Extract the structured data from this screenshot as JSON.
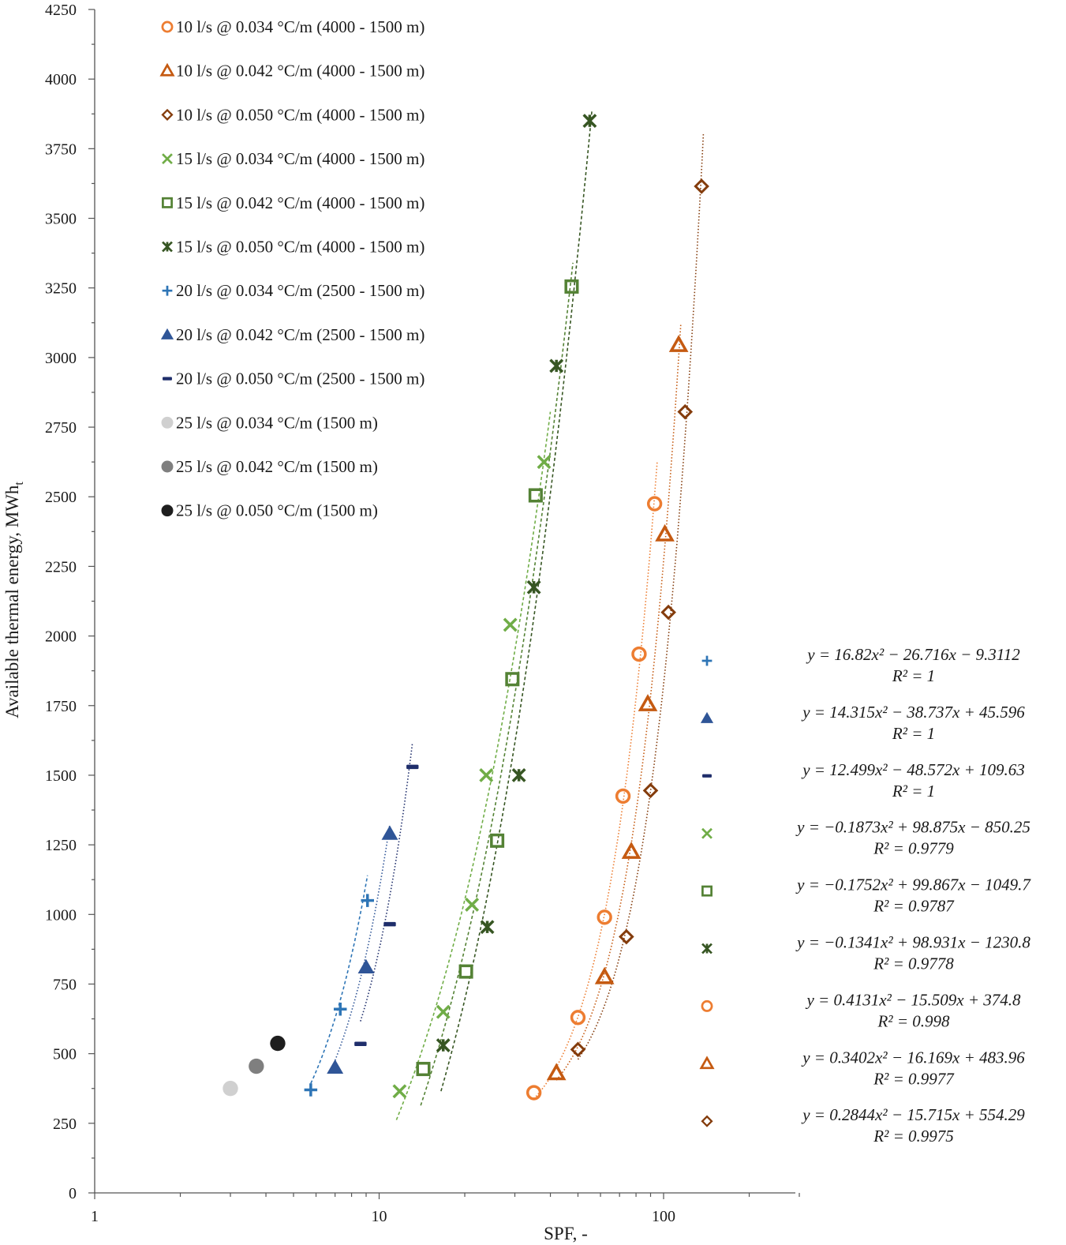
{
  "chart_data": {
    "type": "scatter",
    "title": "",
    "xlabel": "SPF, -",
    "ylabel": "Available thermal energy, MWh",
    "ylabel_subscript": "t",
    "x_scale": "log",
    "xlim": [
      1,
      300
    ],
    "ylim": [
      0,
      4250
    ],
    "x_ticks": [
      1,
      10,
      100
    ],
    "x_tick_labels": [
      "1",
      "10",
      "100"
    ],
    "y_ticks": [
      0,
      250,
      500,
      750,
      1000,
      1250,
      1500,
      1750,
      2000,
      2250,
      2500,
      2750,
      3000,
      3250,
      3500,
      3750,
      4000,
      4250
    ],
    "y_tick_labels": [
      "0",
      "250",
      "500",
      "750",
      "1000",
      "1250",
      "1500",
      "1750",
      "2000",
      "2250",
      "2500",
      "2750",
      "3000",
      "3250",
      "3500",
      "3750",
      "4000",
      "4250"
    ],
    "legend_position": "top-left",
    "series": [
      {
        "name": "10 l/s @ 0.034 °C/m (4000 - 1500 m)",
        "marker": "circle-open",
        "color": "#ED7D31",
        "x": [
          35,
          50,
          62,
          72,
          82,
          93
        ],
        "y": [
          360,
          630,
          990,
          1425,
          1935,
          2475
        ],
        "trend": {
          "style": "dotted",
          "x_range": [
            35,
            95
          ],
          "equation": "y = 0.4131x² − 15.509x + 374.8",
          "r2": "R² = 0.998",
          "coef": [
            0.4131,
            -15.509,
            374.8
          ]
        }
      },
      {
        "name": "10 l/s @ 0.042 °C/m (4000 - 1500 m)",
        "marker": "triangle-open",
        "color": "#C55A11",
        "x": [
          42,
          62,
          77,
          88,
          101,
          113
        ],
        "y": [
          430,
          775,
          1225,
          1755,
          2365,
          3045
        ],
        "trend": {
          "style": "dotted",
          "x_range": [
            42,
            115
          ],
          "equation": "y = 0.3402x² − 16.169x + 483.96",
          "r2": "R² = 0.9977",
          "coef": [
            0.3402,
            -16.169,
            483.96
          ]
        }
      },
      {
        "name": "10 l/s @ 0.050 °C/m (4000 - 1500 m)",
        "marker": "diamond-open",
        "color": "#843C0C",
        "x": [
          50,
          74,
          90,
          104,
          119,
          136
        ],
        "y": [
          515,
          920,
          1445,
          2085,
          2805,
          3615
        ],
        "trend": {
          "style": "dotted",
          "x_range": [
            50,
            138
          ],
          "equation": "y = 0.2844x² − 15.715x + 554.29",
          "r2": "R² = 0.9975",
          "coef": [
            0.2844,
            -15.715,
            554.29
          ]
        }
      },
      {
        "name": "15 l/s @ 0.034 °C/m (4000 - 1500 m)",
        "marker": "x",
        "color": "#70AD47",
        "x": [
          11.8,
          16.8,
          21.2,
          23.8,
          28.9,
          38
        ],
        "y": [
          365,
          650,
          1035,
          1500,
          2040,
          2625
        ],
        "trend": {
          "style": "dashed",
          "x_range": [
            11.5,
            40
          ],
          "equation": "y = −0.1873x² + 98.875x − 850.25",
          "r2": "R² = 0.9779",
          "coef": [
            -0.1873,
            98.875,
            -850.25
          ]
        }
      },
      {
        "name": "15 l/s @ 0.042 °C/m (4000 - 1500 m)",
        "marker": "square-open",
        "color": "#548235",
        "x": [
          14.3,
          20.2,
          26,
          29.4,
          35.5,
          47.5
        ],
        "y": [
          445,
          795,
          1265,
          1845,
          2505,
          3255
        ],
        "trend": {
          "style": "dashed",
          "x_range": [
            14,
            48
          ],
          "equation": "y = −0.1752x² + 99.867x − 1049.7",
          "r2": "R² = 0.9787",
          "coef": [
            -0.1752,
            99.867,
            -1049.7
          ]
        }
      },
      {
        "name": "15 l/s @ 0.050 °C/m (4000 - 1500 m)",
        "marker": "star-x",
        "color": "#375623",
        "x": [
          16.8,
          24,
          31,
          35,
          42,
          55
        ],
        "y": [
          530,
          955,
          1500,
          2175,
          2970,
          3850
        ],
        "trend": {
          "style": "dashed",
          "x_range": [
            16.5,
            56
          ],
          "equation": "y = −0.1341x² + 98.931x − 1230.8",
          "r2": "R² = 0.9778",
          "coef": [
            -0.1341,
            98.931,
            -1230.8
          ]
        }
      },
      {
        "name": "20 l/s @ 0.034 °C/m (2500 - 1500 m)",
        "marker": "plus",
        "color": "#2E75B6",
        "x": [
          5.75,
          7.3,
          9.1
        ],
        "y": [
          370,
          660,
          1050
        ],
        "trend": {
          "style": "dashed",
          "x_range": [
            5.75,
            9.1
          ],
          "equation": "y = 16.82x² − 26.716x − 9.3112",
          "r2": "R² = 1",
          "coef": [
            16.82,
            -26.716,
            -9.3112
          ]
        }
      },
      {
        "name": "20 l/s @ 0.042 °C/m (2500 - 1500 m)",
        "marker": "triangle-filled",
        "color": "#2F5597",
        "x": [
          7.0,
          9.0,
          10.9
        ],
        "y": [
          450,
          810,
          1290
        ],
        "trend": {
          "style": "dotted",
          "x_range": [
            7.0,
            10.9
          ],
          "equation": "y = 14.315x² − 38.737x + 45.596",
          "r2": "R² = 1",
          "coef": [
            14.315,
            -38.737,
            45.596
          ]
        }
      },
      {
        "name": "20 l/s @ 0.050 °C/m (2500 - 1500 m)",
        "marker": "dash",
        "color": "#1F2E6B",
        "x": [
          8.6,
          10.9,
          13.1
        ],
        "y": [
          535,
          965,
          1530
        ],
        "trend": {
          "style": "dotted",
          "x_range": [
            8.6,
            13.1
          ],
          "equation": "y = 12.499x² − 48.572x + 109.63",
          "r2": "R² = 1",
          "coef": [
            12.499,
            -48.572,
            109.63
          ]
        }
      },
      {
        "name": "25 l/s @ 0.034 °C/m (1500 m)",
        "marker": "circle-filled",
        "color": "#D0D0D0",
        "x": [
          3.0
        ],
        "y": [
          375
        ]
      },
      {
        "name": "25 l/s @ 0.042 °C/m (1500 m)",
        "marker": "circle-filled",
        "color": "#7F7F7F",
        "x": [
          3.7
        ],
        "y": [
          455
        ]
      },
      {
        "name": "25 l/s @ 0.050 °C/m (1500 m)",
        "marker": "circle-filled",
        "color": "#1E1E1E",
        "x": [
          4.4
        ],
        "y": [
          537
        ]
      }
    ],
    "equation_legend_order": [
      6,
      7,
      8,
      3,
      4,
      5,
      0,
      1,
      2
    ]
  }
}
